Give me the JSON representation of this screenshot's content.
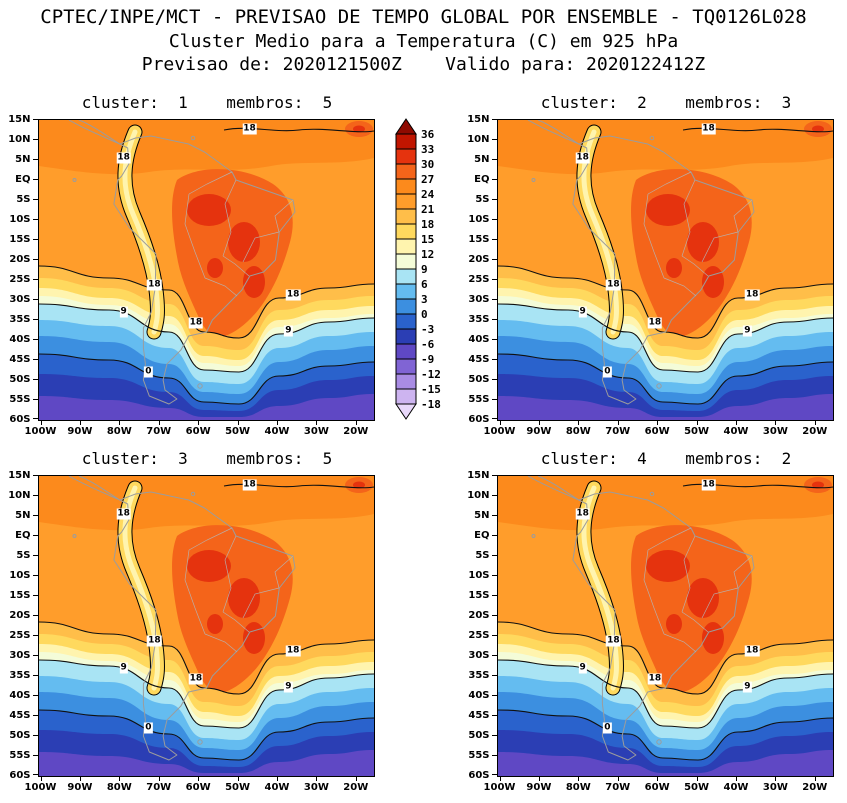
{
  "header": {
    "line1": "CPTEC/INPE/MCT - PREVISAO DE TEMPO GLOBAL POR ENSEMBLE - TQ0126L028",
    "line2": "Cluster Medio para a Temperatura (C) em 925 hPa",
    "line3": "Previsao de: 2020121500Z    Valido para: 2020122412Z"
  },
  "chart_data": {
    "type": "heatmap",
    "title": "CPTEC/INPE/MCT - PREVISAO DE TEMPO GLOBAL POR ENSEMBLE - TQ0126L028",
    "subtitle": "Cluster Medio para a Temperatura (C) em 925 hPa",
    "init_time": "2020121500Z",
    "valid_time": "2020122412Z",
    "variable": "Temperatura (C)",
    "level": "925 hPa",
    "region": "South America",
    "panels": [
      {
        "id": 1,
        "label": "cluster:  1    membros:  5",
        "cluster": 1,
        "members": 5
      },
      {
        "id": 2,
        "label": "cluster:  2    membros:  3",
        "cluster": 2,
        "members": 3
      },
      {
        "id": 3,
        "label": "cluster:  3    membros:  5",
        "cluster": 3,
        "members": 5
      },
      {
        "id": 4,
        "label": "cluster:  4    membros:  2",
        "cluster": 4,
        "members": 2
      }
    ],
    "axes": {
      "y_ticks": [
        "15N",
        "10N",
        "5N",
        "EQ",
        "5S",
        "10S",
        "15S",
        "20S",
        "25S",
        "30S",
        "35S",
        "40S",
        "45S",
        "50S",
        "55S",
        "60S"
      ],
      "x_ticks": [
        "100W",
        "90W",
        "80W",
        "70W",
        "60W",
        "50W",
        "40W",
        "30W",
        "20W"
      ],
      "lat_top": "15N",
      "lat_bottom": "60S",
      "lon_left": "100W",
      "grid": false
    },
    "colorbar": {
      "unit": "C",
      "levels": [
        36,
        33,
        30,
        27,
        24,
        21,
        18,
        15,
        12,
        9,
        6,
        3,
        0,
        -3,
        -6,
        -9,
        -12,
        -15,
        -18
      ],
      "colors": [
        "#8F0A00",
        "#C11500",
        "#E5330E",
        "#F4641A",
        "#FC8A1C",
        "#FF9D2B",
        "#FFBE49",
        "#FFD95E",
        "#FFF4AE",
        "#F4FCD8",
        "#A9E4F4",
        "#64BCF0",
        "#3C8FE0",
        "#2A62CC",
        "#2B3EB4",
        "#5F48C4",
        "#8064D4",
        "#A98CE4",
        "#CDB4F0",
        "#E8D8FA"
      ]
    },
    "contour_labels": [
      {
        "text": "18",
        "x": 63,
        "y": 3
      },
      {
        "text": "18",
        "x": 25.4,
        "y": 12.7
      },
      {
        "text": "18",
        "x": 34.6,
        "y": 55
      },
      {
        "text": "18",
        "x": 47,
        "y": 67.6
      },
      {
        "text": "18",
        "x": 76,
        "y": 58.3
      },
      {
        "text": "9",
        "x": 25.4,
        "y": 64
      },
      {
        "text": "9",
        "x": 74.6,
        "y": 70.5
      },
      {
        "text": "0",
        "x": 32.8,
        "y": 84
      }
    ]
  }
}
